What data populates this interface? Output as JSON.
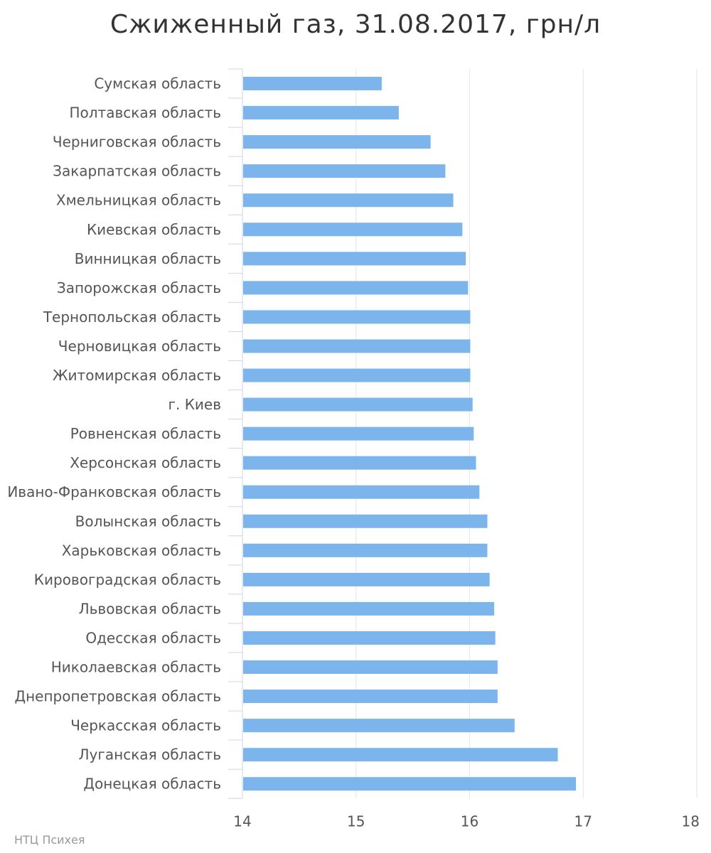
{
  "credit": "НТЦ Психея",
  "colors": {
    "bar": "#7cb5ec",
    "grid": "#e6e6e6",
    "axis": "#ccd6eb",
    "text": "#555555"
  },
  "chart_data": {
    "type": "bar",
    "orientation": "horizontal",
    "title": "Сжиженный газ, 31.08.2017, грн/л",
    "xlabel": "",
    "ylabel": "",
    "xlim": [
      14,
      18
    ],
    "ticks": [
      "14",
      "15",
      "16",
      "17",
      "18"
    ],
    "grid": true,
    "categories": [
      "Сумская область",
      "Полтавская область",
      "Черниговская область",
      "Закарпатская область",
      "Хмельницкая область",
      "Киевская область",
      "Винницкая область",
      "Запорожская область",
      "Тернопольская область",
      "Черновицкая область",
      "Житомирская область",
      "г. Киев",
      "Ровненская область",
      "Херсонская область",
      "Ивано-Франковская область",
      "Волынская область",
      "Харьковская область",
      "Кировоградская область",
      "Львовская область",
      "Одесская область",
      "Николаевская область",
      "Днепропетровская область",
      "Черкасская область",
      "Луганская область",
      "Донецкая область"
    ],
    "values": [
      15.22,
      15.37,
      15.65,
      15.78,
      15.85,
      15.93,
      15.96,
      15.98,
      16.0,
      16.0,
      16.0,
      16.02,
      16.03,
      16.05,
      16.08,
      16.15,
      16.15,
      16.17,
      16.21,
      16.22,
      16.24,
      16.24,
      16.39,
      16.77,
      16.93
    ]
  }
}
